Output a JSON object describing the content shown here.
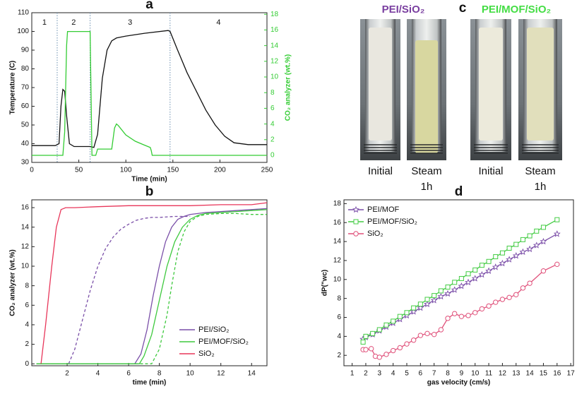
{
  "chart_data": [
    {
      "type": "line",
      "label": "a",
      "xlabel": "Time (min)",
      "ylabel": "Temperature (C)",
      "y2label": "CO₂ analyzer (wt.%)",
      "xlim": [
        0,
        250
      ],
      "ylim": [
        30,
        110
      ],
      "y2lim": [
        -0.9,
        18.2
      ],
      "xticks": [
        0,
        50,
        100,
        150,
        200,
        250
      ],
      "yticks": [
        30,
        40,
        50,
        60,
        70,
        80,
        90,
        100,
        110
      ],
      "y2ticks": [
        0,
        2,
        4,
        6,
        8,
        10,
        12,
        14,
        16,
        18
      ],
      "y2color": "#33cc33",
      "vlines": [
        27,
        62,
        147
      ],
      "region_labels": [
        "1",
        "2",
        "3",
        "4"
      ],
      "series": [
        {
          "color": "#111111",
          "x": [
            0,
            25,
            29,
            31,
            33,
            35,
            37,
            40,
            45,
            55,
            62,
            66,
            70,
            75,
            80,
            85,
            90,
            100,
            120,
            145,
            147,
            155,
            165,
            175,
            185,
            195,
            205,
            215,
            230,
            250
          ],
          "values": [
            39,
            39,
            40,
            60,
            69,
            68,
            55,
            40,
            38.5,
            38.5,
            38.5,
            38,
            45,
            75,
            90,
            95,
            96.5,
            97.5,
            99,
            100.5,
            100,
            90,
            78,
            68,
            58,
            50,
            44,
            40.5,
            39.5,
            39.5
          ]
        },
        {
          "color": "#33cc33",
          "axis": "y2",
          "x": [
            0,
            33,
            35,
            37,
            38,
            62,
            63,
            64,
            68,
            70,
            85,
            88,
            90,
            92,
            100,
            110,
            120,
            126,
            127,
            128,
            250
          ],
          "values": [
            0,
            0,
            3,
            14,
            15.8,
            15.8,
            8,
            0,
            0,
            0.8,
            0.8,
            3.5,
            4,
            3.8,
            2.6,
            1.8,
            1.3,
            1.0,
            0.6,
            0,
            0
          ]
        }
      ]
    },
    {
      "type": "line",
      "label": "b",
      "xlabel": "time (min)",
      "ylabel": "CO₂ analyzer (wt.%)",
      "xlim": [
        -0.3,
        15
      ],
      "ylim": [
        -0.2,
        16.8
      ],
      "xticks": [
        2,
        4,
        6,
        8,
        10,
        12,
        14
      ],
      "yticks": [
        0,
        2,
        4,
        6,
        8,
        10,
        12,
        14,
        16
      ],
      "legend": "lower right",
      "series": [
        {
          "name": "PEI/SiO₂",
          "color": "#7a4fa8",
          "x": [
            0,
            6.4,
            6.8,
            7.2,
            7.6,
            8.0,
            8.4,
            8.8,
            9.2,
            9.6,
            10,
            11,
            12,
            13,
            14,
            15
          ],
          "values": [
            0,
            0,
            1,
            3.5,
            7,
            10,
            12.5,
            14,
            14.8,
            15.1,
            15.3,
            15.5,
            15.6,
            15.7,
            15.8,
            15.9
          ]
        },
        {
          "name": "PEI/MOF/SiO₂",
          "color": "#3ec93e",
          "x": [
            0,
            6.7,
            7,
            7.5,
            8,
            8.5,
            9,
            9.5,
            10,
            10.5,
            11,
            12,
            13,
            14,
            15
          ],
          "values": [
            0,
            0,
            0.8,
            3,
            6.5,
            10,
            12.5,
            14,
            14.8,
            15.2,
            15.4,
            15.5,
            15.6,
            15.7,
            15.8
          ]
        },
        {
          "name": "SiO₂",
          "color": "#e8365a",
          "x": [
            0.3,
            0.6,
            1,
            1.3,
            1.6,
            1.9,
            2.5,
            4,
            6,
            8,
            10,
            12,
            14,
            15
          ],
          "values": [
            0,
            4,
            10,
            14,
            15.8,
            16,
            16,
            16.1,
            16.2,
            16.2,
            16.2,
            16.3,
            16.3,
            16.5
          ]
        },
        {
          "color": "#7a4fa8",
          "dash": true,
          "x": [
            2.1,
            2.5,
            3,
            3.5,
            4,
            4.5,
            5,
            5.5,
            6,
            6.5,
            7,
            7.5,
            8,
            9,
            10
          ],
          "values": [
            0,
            1.5,
            4.5,
            7.5,
            10,
            11.8,
            13,
            13.8,
            14.3,
            14.7,
            14.9,
            15,
            15,
            15.1,
            15.1
          ]
        },
        {
          "color": "#3ec93e",
          "dash": true,
          "x": [
            0,
            7.5,
            8,
            8.5,
            8.8,
            9.2,
            9.6,
            10,
            10.5,
            11,
            12,
            13,
            14,
            15
          ],
          "values": [
            0,
            0,
            1.5,
            5,
            8,
            11.5,
            13.5,
            14.6,
            15.1,
            15.3,
            15.4,
            15.4,
            15.3,
            15.3
          ]
        }
      ]
    },
    {
      "type": "line",
      "label": "d",
      "xlabel": "gas velocity (cm/s)",
      "ylabel": "dP(\"wc)",
      "xlim": [
        0.4,
        17.2
      ],
      "ylim": [
        0.9,
        18.4
      ],
      "xticks": [
        1,
        2,
        3,
        4,
        5,
        6,
        7,
        8,
        9,
        10,
        11,
        12,
        13,
        14,
        15,
        16,
        17
      ],
      "yticks": [
        2,
        4,
        6,
        8,
        10,
        12,
        14,
        16,
        18
      ],
      "legend": "upper left",
      "series": [
        {
          "name": "PEI/MOF",
          "color": "#7b4ea8",
          "marker": "star",
          "x": [
            1.8,
            2,
            2.5,
            3,
            3.5,
            4,
            4.5,
            5,
            5.5,
            6,
            6.5,
            7,
            7.5,
            8,
            8.5,
            9,
            9.5,
            10,
            10.5,
            11,
            11.5,
            12,
            12.5,
            13,
            13.5,
            14,
            14.5,
            15,
            16
          ],
          "values": [
            3.7,
            3.9,
            4.2,
            4.6,
            5.0,
            5.4,
            5.8,
            6.2,
            6.6,
            7.0,
            7.4,
            7.8,
            8.2,
            8.5,
            8.9,
            9.3,
            9.7,
            10.1,
            10.5,
            10.9,
            11.3,
            11.7,
            12.1,
            12.5,
            12.9,
            13.2,
            13.6,
            14.0,
            14.8
          ]
        },
        {
          "name": "PEI/MOF/SiO₂",
          "color": "#44cc44",
          "marker": "square",
          "x": [
            1.8,
            2,
            2.5,
            3,
            3.5,
            4,
            4.5,
            5,
            5.5,
            6,
            6.5,
            7,
            7.5,
            8,
            8.5,
            9,
            9.5,
            10,
            10.5,
            11,
            11.5,
            12,
            12.5,
            13,
            13.5,
            14,
            14.5,
            15,
            16
          ],
          "values": [
            3.4,
            4.0,
            4.3,
            4.7,
            5.2,
            5.6,
            6.1,
            6.5,
            7.0,
            7.4,
            7.9,
            8.3,
            8.8,
            9.2,
            9.7,
            10.1,
            10.6,
            11.0,
            11.5,
            11.9,
            12.4,
            12.8,
            13.3,
            13.7,
            14.2,
            14.6,
            15.1,
            15.5,
            16.3
          ]
        },
        {
          "name": "SiO₂",
          "color": "#e0507a",
          "marker": "circle",
          "x": [
            1.8,
            2.0,
            2.4,
            2.7,
            3.0,
            3.5,
            4.0,
            4.5,
            5,
            5.5,
            6,
            6.5,
            7,
            7.5,
            8,
            8.5,
            9,
            9.5,
            10,
            10.5,
            11,
            11.5,
            12,
            12.5,
            13,
            13.5,
            14,
            15,
            16
          ],
          "values": [
            2.6,
            2.6,
            2.7,
            1.9,
            1.8,
            2.1,
            2.5,
            2.8,
            3.2,
            3.6,
            4.1,
            4.3,
            4.2,
            4.7,
            5.9,
            6.4,
            6.1,
            6.2,
            6.5,
            6.9,
            7.2,
            7.6,
            7.9,
            8.1,
            8.4,
            9.1,
            9.6,
            10.9,
            11.6
          ]
        }
      ]
    }
  ],
  "photos": {
    "label": "c",
    "groups": [
      {
        "title": "PEI/SiO₂",
        "color": "#7a3fa0",
        "photos": [
          {
            "caption": [
              "Initial"
            ]
          },
          {
            "caption": [
              "Steam",
              "1h"
            ]
          }
        ]
      },
      {
        "title": "PEI/MOF/SiO₂",
        "color": "#44dd44",
        "photos": [
          {
            "caption": [
              "Initial"
            ]
          },
          {
            "caption": [
              "Steam",
              "1h"
            ]
          }
        ]
      }
    ]
  }
}
